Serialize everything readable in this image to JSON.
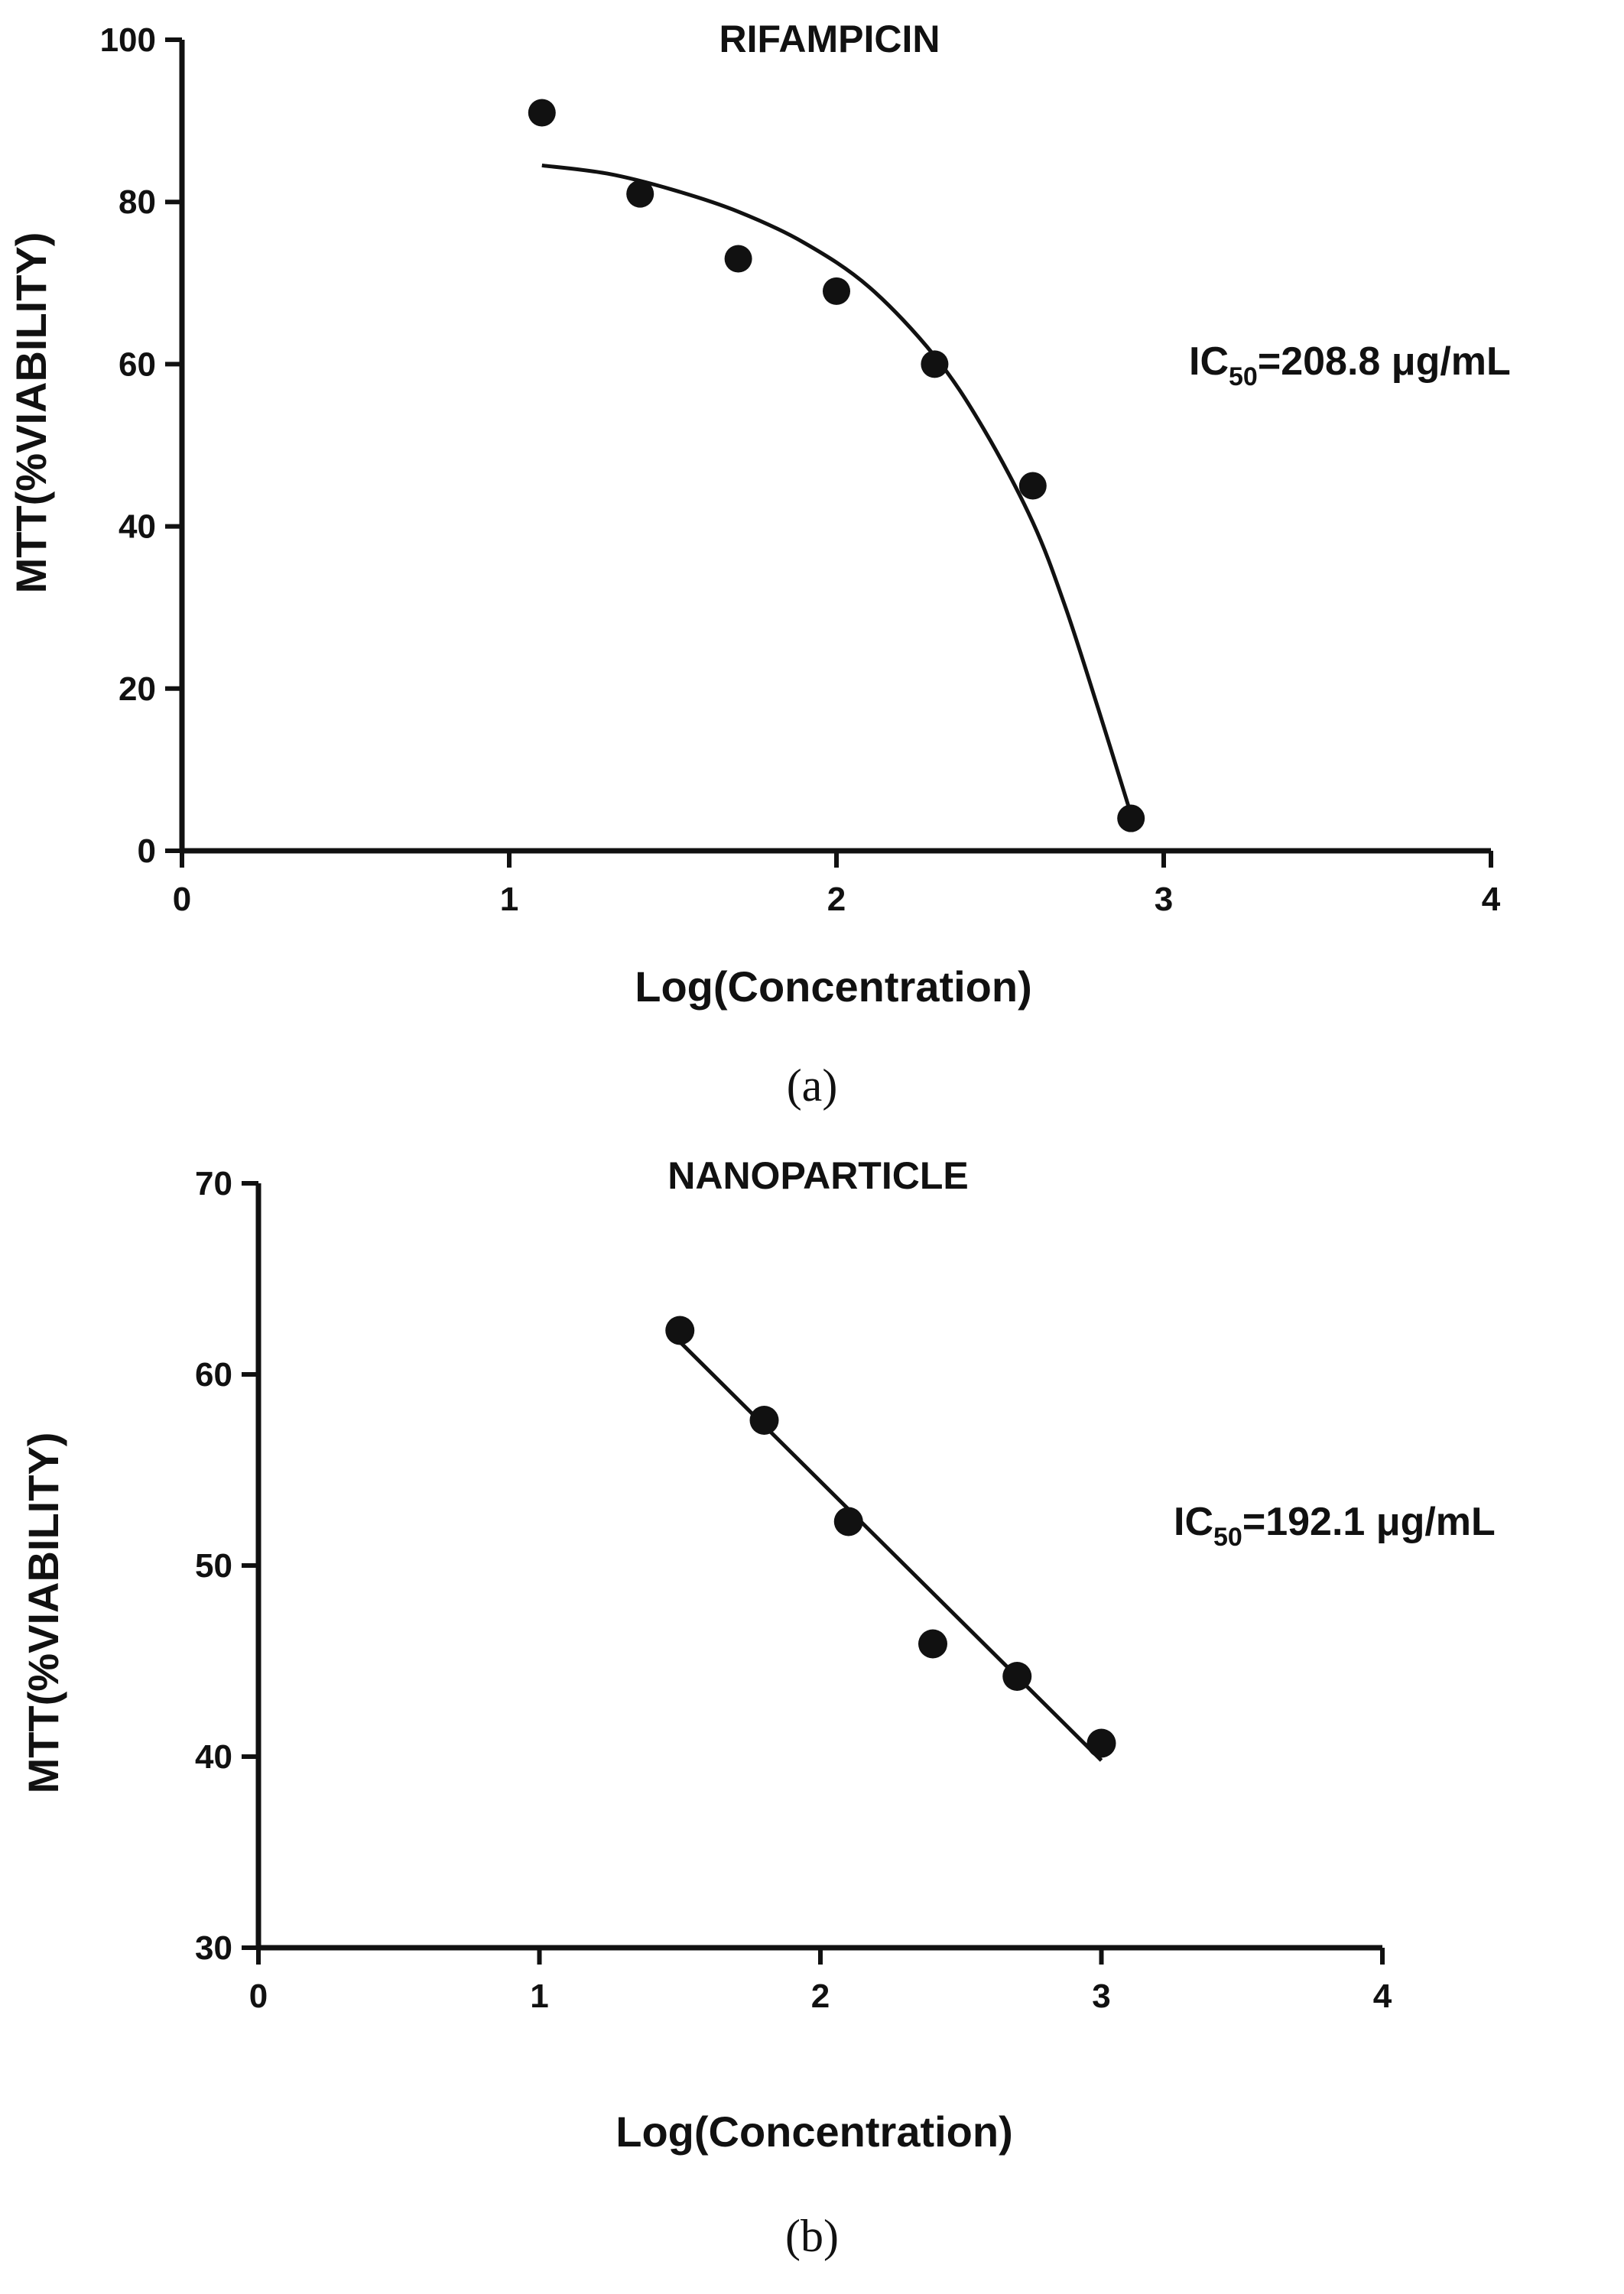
{
  "chart_data": [
    {
      "type": "scatter",
      "panel": "(a)",
      "title": "RIFAMPICIN",
      "xlabel": "Log(Concentration)",
      "ylabel": "MTT(%VIABILITY)",
      "xlim": [
        0,
        4
      ],
      "ylim": [
        0,
        100
      ],
      "x_ticks": [
        "0",
        "1",
        "2",
        "3",
        "4"
      ],
      "y_ticks": [
        "0",
        "20",
        "40",
        "60",
        "80",
        "100"
      ],
      "grid": false,
      "fit": "nonlinear curve",
      "annotation": {
        "prefix": "IC",
        "subscript": "50",
        "suffix": "=208.8 μg/mL"
      },
      "points": [
        {
          "x": 1.1,
          "y": 91
        },
        {
          "x": 1.4,
          "y": 81
        },
        {
          "x": 1.7,
          "y": 73
        },
        {
          "x": 2.0,
          "y": 69
        },
        {
          "x": 2.3,
          "y": 60
        },
        {
          "x": 2.6,
          "y": 45
        },
        {
          "x": 2.9,
          "y": 4
        }
      ],
      "curve": [
        {
          "x": 1.1,
          "y": 84.5
        },
        {
          "x": 1.3,
          "y": 83.5
        },
        {
          "x": 1.5,
          "y": 81.5
        },
        {
          "x": 1.7,
          "y": 78.8
        },
        {
          "x": 1.9,
          "y": 75.0
        },
        {
          "x": 2.1,
          "y": 69.5
        },
        {
          "x": 2.3,
          "y": 61.0
        },
        {
          "x": 2.45,
          "y": 52.0
        },
        {
          "x": 2.6,
          "y": 40.5
        },
        {
          "x": 2.7,
          "y": 30.0
        },
        {
          "x": 2.8,
          "y": 17.5
        },
        {
          "x": 2.9,
          "y": 4.5
        }
      ]
    },
    {
      "type": "scatter",
      "panel": "(b)",
      "title": "NANOPARTICLE",
      "xlabel": "Log(Concentration)",
      "ylabel": "MTT(%VIABILITY)",
      "xlim": [
        0,
        4
      ],
      "ylim": [
        30,
        70
      ],
      "x_ticks": [
        "0",
        "1",
        "2",
        "3",
        "4"
      ],
      "y_ticks": [
        "30",
        "40",
        "50",
        "60",
        "70"
      ],
      "grid": false,
      "fit": "linear",
      "annotation": {
        "prefix": "IC",
        "subscript": "50",
        "suffix": "=192.1 μg/mL"
      },
      "points": [
        {
          "x": 1.5,
          "y": 62.3
        },
        {
          "x": 1.8,
          "y": 57.6
        },
        {
          "x": 2.1,
          "y": 52.3
        },
        {
          "x": 2.4,
          "y": 45.9
        },
        {
          "x": 2.7,
          "y": 44.2
        },
        {
          "x": 3.0,
          "y": 40.7
        }
      ],
      "curve": [
        {
          "x": 1.5,
          "y": 61.7
        },
        {
          "x": 3.0,
          "y": 39.8
        }
      ]
    }
  ]
}
